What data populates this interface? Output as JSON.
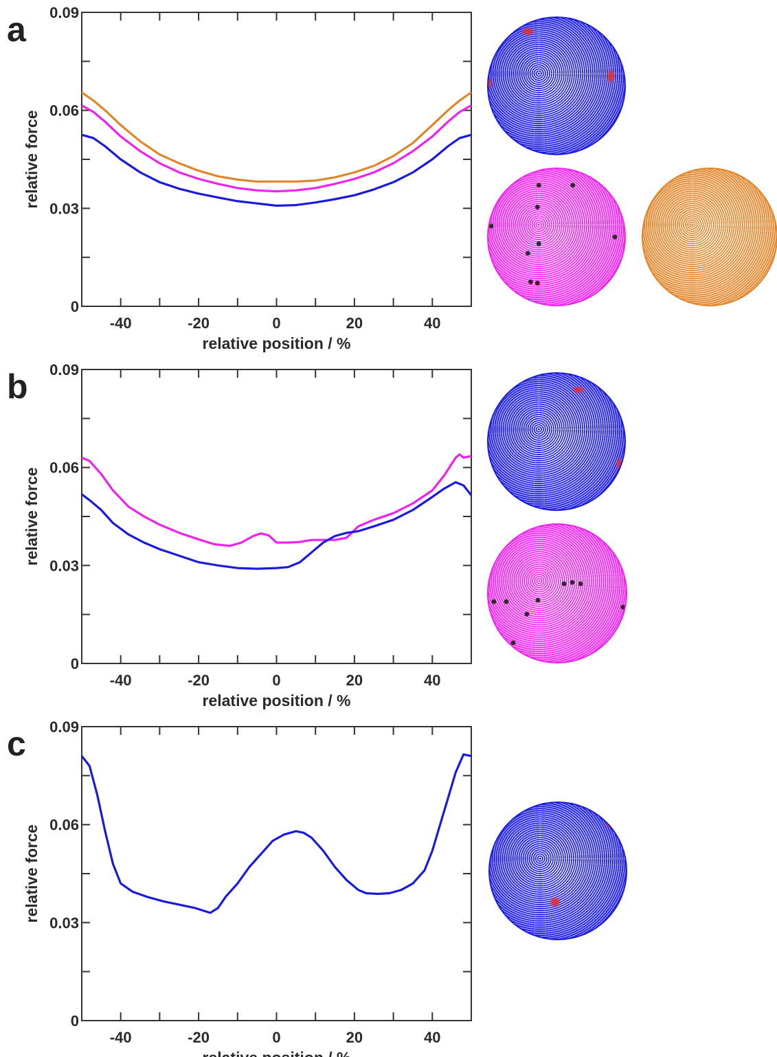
{
  "colors": {
    "blue": "#1a1adf",
    "magenta": "#ee22ee",
    "orange": "#e0862a",
    "dark_sphere_dots": "#2a2a2a",
    "red_patch": "#e03030"
  },
  "axis_common": {
    "xlabel": "relative position / %",
    "ylabel": "relative force",
    "xlim": [
      -50,
      50
    ],
    "ylim": [
      0,
      0.09
    ],
    "xticks": [
      -40,
      -20,
      0,
      20,
      40
    ],
    "yticks": [
      0,
      0.03,
      0.06,
      0.09
    ],
    "ytick_labels": [
      "0",
      "0.03",
      "0.06",
      "0.09"
    ]
  },
  "panels": [
    {
      "letter": "a"
    },
    {
      "letter": "b"
    },
    {
      "letter": "c"
    }
  ],
  "spheres": {
    "a": [
      "blue sphere with red patches",
      "magenta sphere with black dots",
      "orange sphere"
    ],
    "b": [
      "blue sphere with red patches",
      "magenta sphere with black dots"
    ],
    "c": [
      "blue sphere with red patches"
    ]
  },
  "chart_data": [
    {
      "type": "line",
      "panel": "a",
      "xlabel": "relative position / %",
      "ylabel": "relative force",
      "xlim": [
        -50,
        50
      ],
      "ylim": [
        0,
        0.09
      ],
      "grid": false,
      "series": [
        {
          "color": "#e0862a",
          "x": [
            -50,
            -47,
            -44,
            -40,
            -35,
            -30,
            -25,
            -20,
            -15,
            -10,
            -5,
            0,
            5,
            10,
            15,
            20,
            25,
            30,
            35,
            40,
            44,
            47,
            50
          ],
          "y": [
            0.0655,
            0.063,
            0.06,
            0.0555,
            0.0505,
            0.0465,
            0.0438,
            0.0415,
            0.0398,
            0.0388,
            0.0382,
            0.0382,
            0.0382,
            0.0385,
            0.0395,
            0.041,
            0.043,
            0.046,
            0.05,
            0.0555,
            0.06,
            0.063,
            0.0655
          ]
        },
        {
          "color": "#ee22ee",
          "x": [
            -50,
            -47,
            -44,
            -40,
            -35,
            -30,
            -25,
            -20,
            -15,
            -10,
            -5,
            0,
            5,
            10,
            15,
            20,
            25,
            30,
            35,
            40,
            44,
            47,
            50
          ],
          "y": [
            0.0615,
            0.0595,
            0.0565,
            0.052,
            0.0475,
            0.0438,
            0.041,
            0.039,
            0.0375,
            0.0362,
            0.0355,
            0.0352,
            0.0355,
            0.0362,
            0.0375,
            0.039,
            0.041,
            0.0438,
            0.0475,
            0.052,
            0.0565,
            0.0595,
            0.0615
          ]
        },
        {
          "color": "#1a1adf",
          "x": [
            -50,
            -47,
            -44,
            -40,
            -35,
            -30,
            -25,
            -20,
            -15,
            -10,
            -5,
            0,
            5,
            10,
            15,
            20,
            25,
            30,
            35,
            40,
            44,
            47,
            50
          ],
          "y": [
            0.0525,
            0.0515,
            0.049,
            0.045,
            0.041,
            0.038,
            0.036,
            0.0345,
            0.0333,
            0.0322,
            0.0315,
            0.0308,
            0.031,
            0.0318,
            0.0328,
            0.034,
            0.0358,
            0.038,
            0.041,
            0.045,
            0.049,
            0.0515,
            0.0525
          ]
        }
      ]
    },
    {
      "type": "line",
      "panel": "b",
      "xlabel": "relative position / %",
      "ylabel": "relative force",
      "xlim": [
        -50,
        50
      ],
      "ylim": [
        0,
        0.09
      ],
      "grid": false,
      "series": [
        {
          "color": "#ee22ee",
          "x": [
            -50,
            -48,
            -45,
            -42,
            -38,
            -34,
            -30,
            -25,
            -20,
            -16,
            -12,
            -9,
            -6,
            -4,
            -2,
            0,
            3,
            6,
            9,
            12,
            15,
            18,
            21,
            25,
            30,
            35,
            40,
            43,
            46,
            47,
            48,
            50
          ],
          "y": [
            0.063,
            0.062,
            0.058,
            0.053,
            0.048,
            0.045,
            0.0425,
            0.04,
            0.038,
            0.0365,
            0.036,
            0.037,
            0.039,
            0.0398,
            0.0392,
            0.037,
            0.037,
            0.0372,
            0.0378,
            0.0378,
            0.0378,
            0.0385,
            0.042,
            0.044,
            0.046,
            0.049,
            0.053,
            0.0575,
            0.063,
            0.064,
            0.063,
            0.0635
          ]
        },
        {
          "color": "#1a1adf",
          "x": [
            -50,
            -48,
            -45,
            -42,
            -38,
            -34,
            -30,
            -25,
            -20,
            -15,
            -10,
            -5,
            0,
            3,
            6,
            9,
            12,
            15,
            18,
            21,
            25,
            30,
            35,
            40,
            43,
            46,
            48,
            50
          ],
          "y": [
            0.0518,
            0.05,
            0.047,
            0.043,
            0.0395,
            0.037,
            0.035,
            0.033,
            0.031,
            0.03,
            0.0292,
            0.029,
            0.0292,
            0.0295,
            0.031,
            0.034,
            0.037,
            0.039,
            0.04,
            0.0405,
            0.042,
            0.044,
            0.047,
            0.051,
            0.0535,
            0.0555,
            0.0545,
            0.0515
          ]
        }
      ]
    },
    {
      "type": "line",
      "panel": "c",
      "xlabel": "relative position / %",
      "ylabel": "relative force",
      "xlim": [
        -50,
        50
      ],
      "ylim": [
        0,
        0.09
      ],
      "grid": false,
      "series": [
        {
          "color": "#1a1adf",
          "x": [
            -50,
            -48,
            -46,
            -44,
            -42,
            -40,
            -37,
            -33,
            -29,
            -25,
            -21,
            -17,
            -15,
            -13,
            -10,
            -7,
            -4,
            -1,
            2,
            5,
            7,
            9,
            12,
            15,
            18,
            21,
            23,
            26,
            29,
            32,
            35,
            38,
            40,
            42,
            44,
            46,
            48,
            50
          ],
          "y": [
            0.081,
            0.078,
            0.069,
            0.058,
            0.048,
            0.042,
            0.0395,
            0.0378,
            0.0365,
            0.0355,
            0.0345,
            0.033,
            0.0345,
            0.038,
            0.042,
            0.047,
            0.051,
            0.055,
            0.057,
            0.058,
            0.0575,
            0.056,
            0.052,
            0.047,
            0.043,
            0.04,
            0.039,
            0.0388,
            0.039,
            0.04,
            0.042,
            0.046,
            0.052,
            0.06,
            0.068,
            0.076,
            0.0815,
            0.081
          ]
        }
      ]
    }
  ]
}
